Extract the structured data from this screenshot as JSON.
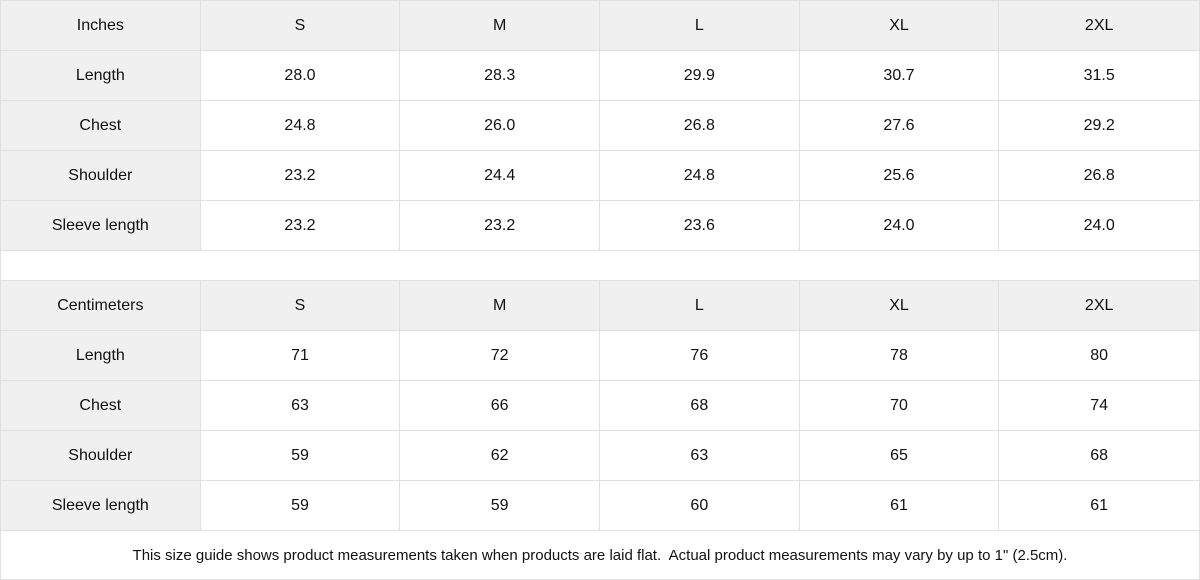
{
  "style": {
    "header_bg": "#f0f0f1",
    "border_color": "#e0e0e0",
    "text_color": "#111111",
    "background": "#ffffff"
  },
  "tables": [
    {
      "unit": "Inches",
      "columns": [
        "S",
        "M",
        "L",
        "XL",
        "2XL"
      ],
      "rows": [
        {
          "label": "Length",
          "values": [
            "28.0",
            "28.3",
            "29.9",
            "30.7",
            "31.5"
          ]
        },
        {
          "label": "Chest",
          "values": [
            "24.8",
            "26.0",
            "26.8",
            "27.6",
            "29.2"
          ]
        },
        {
          "label": "Shoulder",
          "values": [
            "23.2",
            "24.4",
            "24.8",
            "25.6",
            "26.8"
          ]
        },
        {
          "label": "Sleeve length",
          "values": [
            "23.2",
            "23.2",
            "23.6",
            "24.0",
            "24.0"
          ]
        }
      ]
    },
    {
      "unit": "Centimeters",
      "columns": [
        "S",
        "M",
        "L",
        "XL",
        "2XL"
      ],
      "rows": [
        {
          "label": "Length",
          "values": [
            "71",
            "72",
            "76",
            "78",
            "80"
          ]
        },
        {
          "label": "Chest",
          "values": [
            "63",
            "66",
            "68",
            "70",
            "74"
          ]
        },
        {
          "label": "Shoulder",
          "values": [
            "59",
            "62",
            "63",
            "65",
            "68"
          ]
        },
        {
          "label": "Sleeve length",
          "values": [
            "59",
            "59",
            "60",
            "61",
            "61"
          ]
        }
      ]
    }
  ],
  "footer": {
    "note": "This size guide shows product measurements taken when products are laid flat.  Actual product measurements may vary by up to 1\" (2.5cm)."
  }
}
